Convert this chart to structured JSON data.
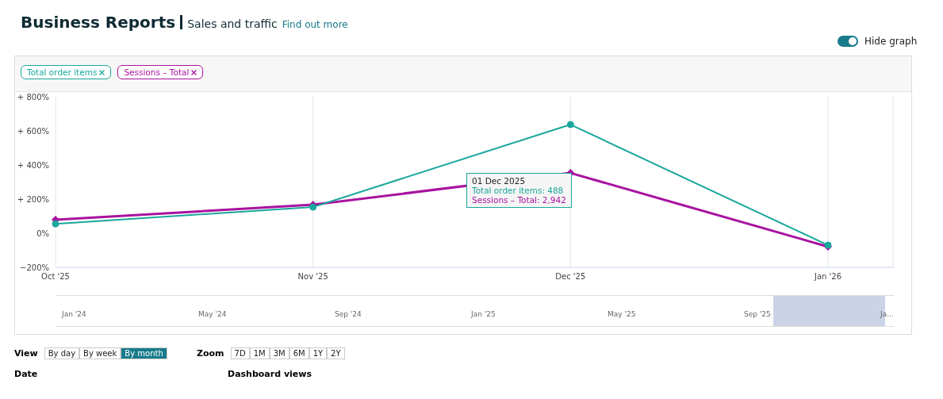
{
  "chart_data": {
    "type": "line",
    "title": "Business Reports",
    "subtitle": "Sales and traffic",
    "categories": [
      "Oct '25",
      "Nov '25",
      "Dec '25",
      "Jan '26"
    ],
    "series": [
      {
        "name": "Total order items",
        "color": "#1aa79c",
        "marker": "circle",
        "values": [
          55,
          153,
          637,
          -70
        ]
      },
      {
        "name": "Sessions – Total",
        "color": "#a8129f",
        "marker": "diamond",
        "values": [
          79,
          167,
          353,
          -79
        ]
      }
    ],
    "ylim": [
      -200,
      800
    ],
    "yticks": [
      {
        "value": -200,
        "label": "−200%"
      },
      {
        "value": 0,
        "label": "0%"
      },
      {
        "value": 200,
        "label": "+ 200%"
      },
      {
        "value": 400,
        "label": "+ 400%"
      },
      {
        "value": 600,
        "label": "+ 600%"
      },
      {
        "value": 800,
        "label": "+ 800%"
      }
    ],
    "grid": "x",
    "legend": "top left",
    "line_style": "solid",
    "annotations": [
      "Find out more",
      "Hide graph",
      "01 Dec 2025",
      "Total order items: 488",
      "Sessions – Total: 2,942",
      "View",
      "By day",
      "By week",
      "By month",
      "Zoom",
      "7D",
      "1M",
      "3M",
      "6M",
      "1Y",
      "2Y",
      "Date",
      "Dashboard views",
      "Jan '24",
      "May '24",
      "Sep '24",
      "Jan '25",
      "May '25",
      "Sep '25",
      "Ja..."
    ]
  }
}
